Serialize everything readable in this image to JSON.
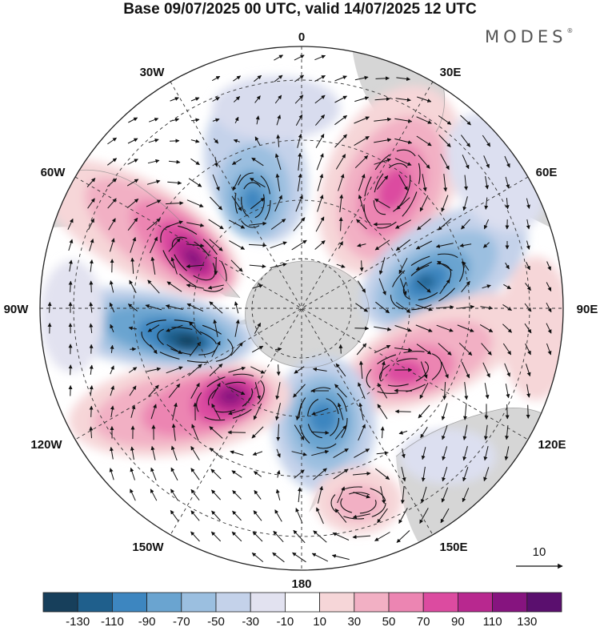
{
  "title": "Base 09/07/2025 00 UTC, valid 14/07/2025 12 UTC",
  "brand": "MODES",
  "brand_mark": "®",
  "longitude_labels": {
    "top": "0",
    "e30": "30E",
    "e60": "60E",
    "e90": "90E",
    "e120": "120E",
    "e150": "150E",
    "bottom": "180",
    "w150": "150W",
    "w120": "120W",
    "w90": "90W",
    "w60": "60W",
    "w30": "30W"
  },
  "reference_vector": {
    "label": "10"
  },
  "colorbar": {
    "labels": [
      "-130",
      "-110",
      "-90",
      "-70",
      "-50",
      "-30",
      "-10",
      "10",
      "30",
      "50",
      "70",
      "90",
      "110",
      "130"
    ],
    "colors": [
      "#173f5b",
      "#1f5f8c",
      "#3d86c0",
      "#6aa4d0",
      "#9bbfe0",
      "#c4d2ea",
      "#e2e2f0",
      "#ffffff",
      "#f6d6d8",
      "#f2b0c4",
      "#ec85b2",
      "#dc4ba0",
      "#b8288f",
      "#86147f",
      "#5a0f6e"
    ]
  },
  "anomaly_cells": [
    {
      "name": "positive-anomaly-northeast",
      "value": 70
    },
    {
      "name": "negative-anomaly-east",
      "value": -110
    },
    {
      "name": "positive-anomaly-east-south",
      "value": 90
    },
    {
      "name": "negative-anomaly-south",
      "value": -90
    },
    {
      "name": "positive-anomaly-southwest",
      "value": 110
    },
    {
      "name": "negative-anomaly-west",
      "value": -130
    },
    {
      "name": "positive-anomaly-northwest",
      "value": 110
    },
    {
      "name": "negative-anomaly-north",
      "value": -70
    },
    {
      "name": "positive-anomaly-southeast",
      "value": 30
    }
  ]
}
